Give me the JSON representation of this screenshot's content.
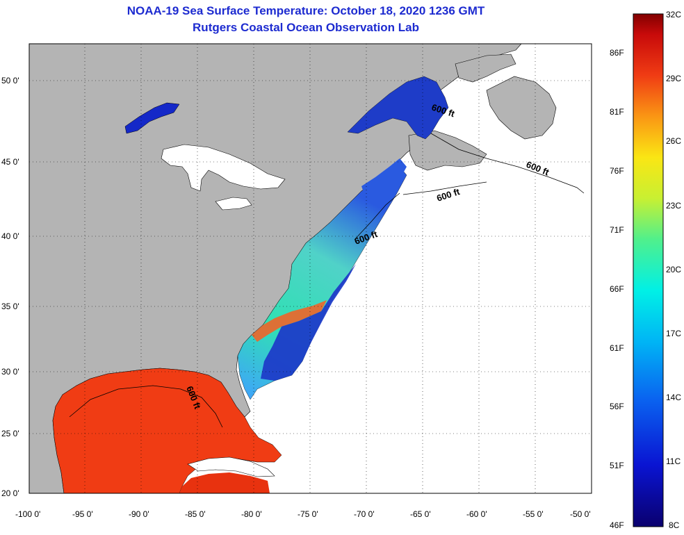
{
  "title": {
    "line1": "NOAA-19 Sea Surface Temperature:  October 18, 2020 1236 GMT",
    "line2": "Rutgers Coastal Ocean Observation Lab"
  },
  "map": {
    "lon_labels": [
      "-100 0'",
      "-95 0'",
      "-90 0'",
      "-85 0'",
      "-80 0'",
      "-75 0'",
      "-70 0'",
      "-65 0'",
      "-60 0'",
      "-55 0'",
      "-50 0'"
    ],
    "lat_labels": [
      "50 0'",
      "45 0'",
      "40 0'",
      "35 0'",
      "30 0'",
      "25 0'",
      "20 0'"
    ],
    "depth_contour_label": "600 ft",
    "colors": {
      "land": "#b4b4b4",
      "gulf": "#f03c14",
      "cold": "#1e3cc8"
    }
  },
  "colorbar": {
    "fahrenheit": [
      "86F",
      "81F",
      "76F",
      "71F",
      "66F",
      "61F",
      "56F",
      "51F",
      "46F"
    ],
    "celsius": [
      "32C",
      "29C",
      "26C",
      "23C",
      "20C",
      "17C",
      "14C",
      "11C",
      "8C"
    ]
  }
}
